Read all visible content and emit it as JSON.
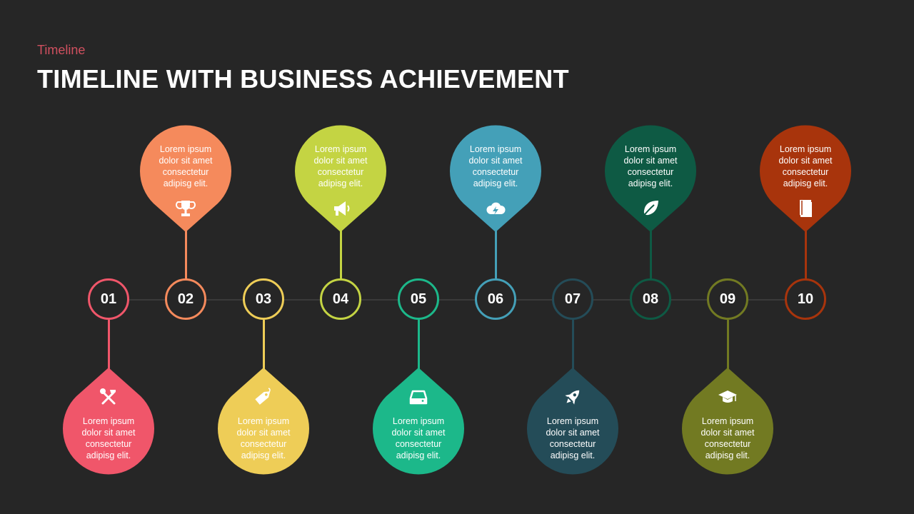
{
  "header": {
    "subtitle": "Timeline",
    "title": "TIMELINE WITH BUSINESS ACHIEVEMENT"
  },
  "steps": [
    {
      "num": "01",
      "color": "#f0566a",
      "dir": "down",
      "icon": "tools-icon",
      "lines": [
        "Lorem ipsum",
        "dolor sit amet",
        "consectetur",
        "adipisg elit."
      ]
    },
    {
      "num": "02",
      "color": "#f58a5c",
      "dir": "up",
      "icon": "trophy-icon",
      "lines": [
        "Lorem ipsum",
        "dolor sit amet",
        "consectetur",
        "adipisg elit."
      ]
    },
    {
      "num": "03",
      "color": "#eecd57",
      "dir": "down",
      "icon": "tag-icon",
      "lines": [
        "Lorem ipsum",
        "dolor sit amet",
        "consectetur",
        "adipisg elit."
      ]
    },
    {
      "num": "04",
      "color": "#c4d443",
      "dir": "up",
      "icon": "megaphone-icon",
      "lines": [
        "Lorem ipsum",
        "dolor sit amet",
        "consectetur",
        "adipisg elit."
      ]
    },
    {
      "num": "05",
      "color": "#1cb88a",
      "dir": "down",
      "icon": "hard-drive-icon",
      "lines": [
        "Lorem ipsum",
        "dolor sit amet",
        "consectetur",
        "adipisg elit."
      ]
    },
    {
      "num": "06",
      "color": "#44a0b8",
      "dir": "up",
      "icon": "cloud-lightning-icon",
      "lines": [
        "Lorem ipsum",
        "dolor sit amet",
        "consectetur",
        "adipisg elit."
      ]
    },
    {
      "num": "07",
      "color": "#244c58",
      "dir": "down",
      "icon": "rocket-icon",
      "lines": [
        "Lorem ipsum",
        "dolor sit amet",
        "consectetur",
        "adipisg elit."
      ]
    },
    {
      "num": "08",
      "color": "#0e5a44",
      "dir": "up",
      "icon": "leaf-icon",
      "lines": [
        "Lorem ipsum",
        "dolor sit amet",
        "consectetur",
        "adipisg elit."
      ]
    },
    {
      "num": "09",
      "color": "#727a22",
      "dir": "down",
      "icon": "graduation-cap-icon",
      "lines": [
        "Lorem ipsum",
        "dolor sit amet",
        "consectetur",
        "adipisg elit."
      ]
    },
    {
      "num": "10",
      "color": "#a8340c",
      "dir": "up",
      "icon": "book-icon",
      "lines": [
        "Lorem ipsum",
        "dolor sit amet",
        "consectetur",
        "adipisg elit."
      ]
    }
  ]
}
